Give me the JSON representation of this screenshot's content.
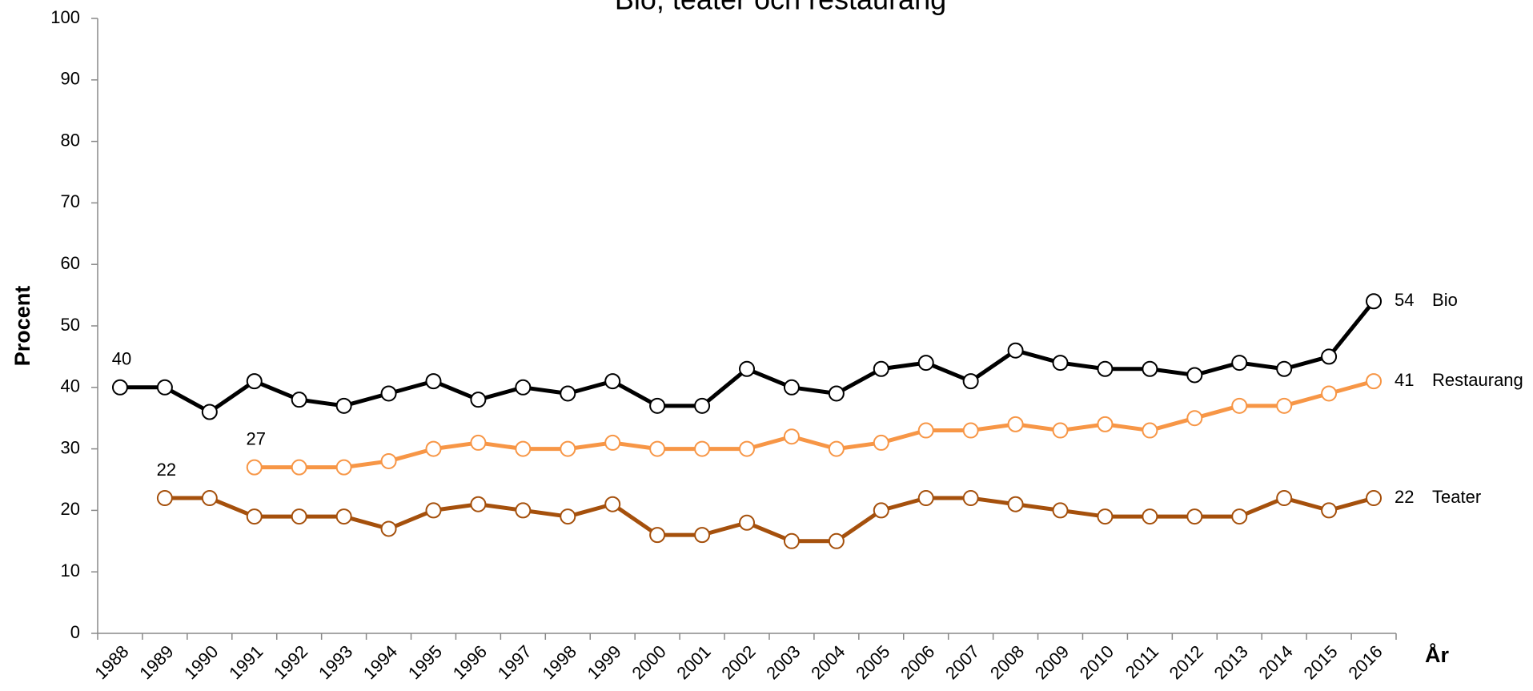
{
  "chart_data": {
    "type": "line",
    "title": "Bio, teater och restaurang",
    "ylabel": "Procent",
    "xlabel": "År",
    "categories": [
      "1988",
      "1989",
      "1990",
      "1991",
      "1992",
      "1993",
      "1994",
      "1995",
      "1996",
      "1997",
      "1998",
      "1999",
      "2000",
      "2001",
      "2002",
      "2003",
      "2004",
      "2005",
      "2006",
      "2007",
      "2008",
      "2009",
      "2010",
      "2011",
      "2012",
      "2013",
      "2014",
      "2015",
      "2016"
    ],
    "series": [
      {
        "name": "Bio",
        "color": "#000000",
        "values": [
          40,
          40,
          36,
          41,
          38,
          37,
          39,
          41,
          38,
          40,
          39,
          41,
          37,
          37,
          43,
          40,
          39,
          43,
          44,
          41,
          46,
          44,
          43,
          43,
          42,
          44,
          43,
          45,
          54
        ]
      },
      {
        "name": "Restaurang",
        "color": "#f79646",
        "values": [
          null,
          null,
          null,
          27,
          27,
          27,
          28,
          30,
          31,
          30,
          30,
          31,
          30,
          30,
          30,
          32,
          30,
          31,
          33,
          33,
          34,
          33,
          34,
          33,
          35,
          37,
          37,
          39,
          41
        ]
      },
      {
        "name": "Teater",
        "color": "#a5500c",
        "values": [
          null,
          22,
          22,
          19,
          19,
          19,
          17,
          20,
          21,
          20,
          19,
          21,
          16,
          16,
          18,
          15,
          15,
          20,
          22,
          22,
          21,
          20,
          19,
          19,
          19,
          19,
          22,
          20,
          22
        ]
      }
    ],
    "ylim": [
      0,
      100
    ],
    "yticks": [
      0,
      10,
      20,
      30,
      40,
      50,
      60,
      70,
      80,
      90,
      100
    ],
    "grid": false
  }
}
